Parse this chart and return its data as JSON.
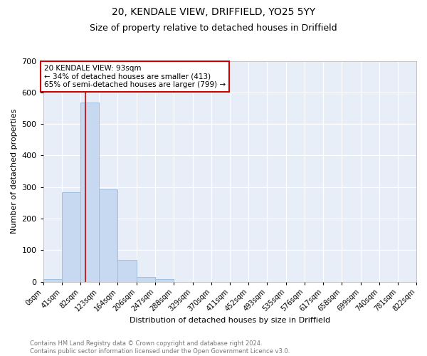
{
  "title1": "20, KENDALE VIEW, DRIFFIELD, YO25 5YY",
  "title2": "Size of property relative to detached houses in Driffield",
  "xlabel": "Distribution of detached houses by size in Driffield",
  "ylabel": "Number of detached properties",
  "bin_edges": [
    0,
    41,
    82,
    123,
    164,
    206,
    247,
    288,
    329,
    370,
    411,
    452,
    493,
    535,
    576,
    617,
    658,
    699,
    740,
    781,
    822
  ],
  "bin_counts": [
    8,
    283,
    568,
    293,
    68,
    14,
    9,
    0,
    0,
    0,
    0,
    0,
    0,
    0,
    0,
    0,
    0,
    0,
    0,
    0
  ],
  "bar_color": "#c6d9f0",
  "bar_edge_color": "#9fbfdf",
  "vline_x": 93,
  "vline_color": "#cc0000",
  "annotation_text": "20 KENDALE VIEW: 93sqm\n← 34% of detached houses are smaller (413)\n65% of semi-detached houses are larger (799) →",
  "annotation_box_color": "white",
  "annotation_box_edge": "#cc0000",
  "ylim": [
    0,
    700
  ],
  "yticks": [
    0,
    100,
    200,
    300,
    400,
    500,
    600,
    700
  ],
  "tick_labels": [
    "0sqm",
    "41sqm",
    "82sqm",
    "123sqm",
    "164sqm",
    "206sqm",
    "247sqm",
    "288sqm",
    "329sqm",
    "370sqm",
    "411sqm",
    "452sqm",
    "493sqm",
    "535sqm",
    "576sqm",
    "617sqm",
    "658sqm",
    "699sqm",
    "740sqm",
    "781sqm",
    "822sqm"
  ],
  "bg_color": "#e8eef8",
  "footer_text": "Contains HM Land Registry data © Crown copyright and database right 2024.\nContains public sector information licensed under the Open Government Licence v3.0.",
  "title_fontsize": 10,
  "subtitle_fontsize": 9,
  "axis_label_fontsize": 8,
  "tick_fontsize": 7,
  "footer_fontsize": 6
}
